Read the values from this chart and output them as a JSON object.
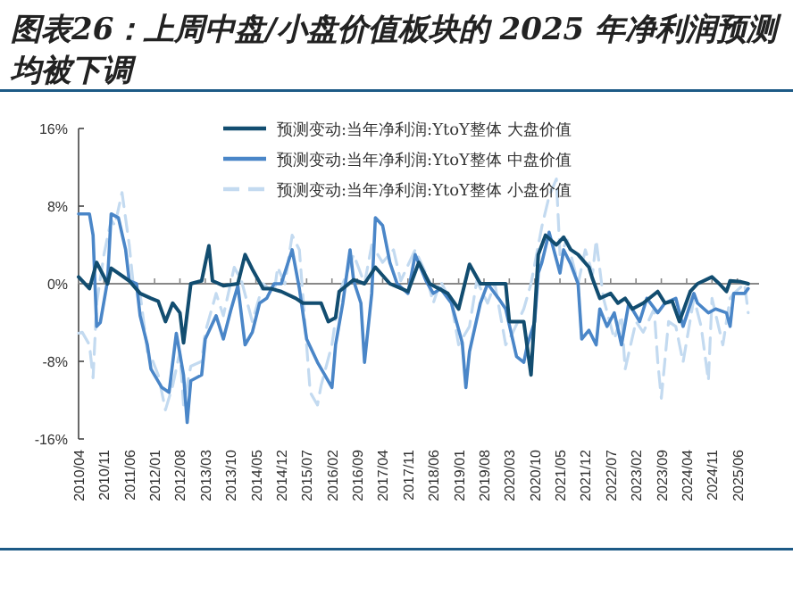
{
  "chart_data": {
    "type": "line",
    "title": "图表26：上周中盘/小盘价值板块的 2025 年净利润预测均被下调",
    "legend": "top",
    "xlim": [
      "2010-04",
      "2025-12"
    ],
    "ylim": [
      -16,
      16
    ],
    "yticks": [
      {
        "value": -16,
        "label": "-16%"
      },
      {
        "value": -8,
        "label": "-8%"
      },
      {
        "value": 0,
        "label": "0%"
      },
      {
        "value": 8,
        "label": "8%"
      },
      {
        "value": 16,
        "label": "16%"
      }
    ],
    "xticks": [
      {
        "value": "2010-04",
        "label": "2010/04"
      },
      {
        "value": "2010-11",
        "label": "2010/11"
      },
      {
        "value": "2011-06",
        "label": "2011/06"
      },
      {
        "value": "2012-01",
        "label": "2012/01"
      },
      {
        "value": "2012-08",
        "label": "2012/08"
      },
      {
        "value": "2013-03",
        "label": "2013/03"
      },
      {
        "value": "2013-10",
        "label": "2013/10"
      },
      {
        "value": "2014-05",
        "label": "2014/05"
      },
      {
        "value": "2014-12",
        "label": "2014/12"
      },
      {
        "value": "2015-07",
        "label": "2015/07"
      },
      {
        "value": "2016-02",
        "label": "2016/02"
      },
      {
        "value": "2016-09",
        "label": "2016/09"
      },
      {
        "value": "2017-04",
        "label": "2017/04"
      },
      {
        "value": "2017-11",
        "label": "2017/11"
      },
      {
        "value": "2018-06",
        "label": "2018/06"
      },
      {
        "value": "2019-01",
        "label": "2019/01"
      },
      {
        "value": "2019-08",
        "label": "2019/08"
      },
      {
        "value": "2020-03",
        "label": "2020/03"
      },
      {
        "value": "2020-10",
        "label": "2020/10"
      },
      {
        "value": "2021-05",
        "label": "2021/05"
      },
      {
        "value": "2021-12",
        "label": "2021/12"
      },
      {
        "value": "2022-07",
        "label": "2022/07"
      },
      {
        "value": "2023-02",
        "label": "2023/02"
      },
      {
        "value": "2023-09",
        "label": "2023/09"
      },
      {
        "value": "2024-04",
        "label": "2024/04"
      },
      {
        "value": "2024-11",
        "label": "2024/11"
      },
      {
        "value": "2025-06",
        "label": "2025/06"
      }
    ],
    "series": [
      {
        "name": "预测变动:当年净利润:YtoY整体 大盘价值",
        "color": "#124d70",
        "line_style": "solid",
        "x": [
          "2010-04",
          "2010-07",
          "2010-09",
          "2010-12",
          "2011-01",
          "2011-06",
          "2011-09",
          "2011-12",
          "2012-02",
          "2012-04",
          "2012-06",
          "2012-08",
          "2012-09",
          "2012-11",
          "2013-02",
          "2013-04",
          "2013-05",
          "2013-08",
          "2013-12",
          "2014-02",
          "2014-04",
          "2014-07",
          "2014-09",
          "2014-12",
          "2015-04",
          "2015-06",
          "2015-11",
          "2016-01",
          "2016-03",
          "2016-04",
          "2016-08",
          "2016-11",
          "2017-02",
          "2017-06",
          "2017-11",
          "2018-02",
          "2018-05",
          "2018-10",
          "2019-01",
          "2019-04",
          "2019-07",
          "2020-02",
          "2020-03",
          "2020-07",
          "2020-09",
          "2020-11",
          "2021-01",
          "2021-04",
          "2021-06",
          "2021-08",
          "2021-10",
          "2022-01",
          "2022-02",
          "2022-04",
          "2022-07",
          "2022-09",
          "2022-11",
          "2023-01",
          "2023-04",
          "2023-08",
          "2023-10",
          "2023-12",
          "2024-02",
          "2024-05",
          "2024-07",
          "2024-11",
          "2025-01",
          "2025-03",
          "2025-04",
          "2025-07",
          "2025-09"
        ],
        "values": [
          0.7,
          -0.5,
          2.2,
          0,
          1.6,
          0.3,
          -1,
          -1.5,
          -1.8,
          -3.9,
          -2,
          -3,
          -6.1,
          0,
          0.3,
          3.9,
          0.3,
          -0.2,
          0,
          3,
          1.5,
          -0.5,
          -0.5,
          -0.8,
          -1.5,
          -2,
          -2,
          -3.9,
          -3.5,
          -0.8,
          0.4,
          0,
          1.7,
          0,
          -0.8,
          2.2,
          0,
          -1,
          -2.6,
          2,
          0,
          0,
          -3.9,
          -3.9,
          -9.4,
          3,
          5,
          4,
          4.8,
          3.5,
          3,
          1.7,
          0.5,
          -1.5,
          -1,
          -2,
          -1.5,
          -2.6,
          -2,
          -0.8,
          -2,
          -1.8,
          -3.9,
          -0.8,
          0,
          0.7,
          0,
          -0.8,
          0.3,
          0.2,
          0
        ]
      },
      {
        "name": "预测变动:当年净利润:YtoY整体 中盘价值",
        "color": "#4a86c8",
        "line_style": "solid",
        "x": [
          "2010-04",
          "2010-07",
          "2010-08",
          "2010-09",
          "2010-10",
          "2010-12",
          "2011-01",
          "2011-03",
          "2011-05",
          "2011-06",
          "2011-08",
          "2011-09",
          "2011-11",
          "2011-12",
          "2012-03",
          "2012-05",
          "2012-07",
          "2012-09",
          "2012-10",
          "2012-11",
          "2013-02",
          "2013-03",
          "2013-06",
          "2013-08",
          "2013-10",
          "2013-12",
          "2014-02",
          "2014-04",
          "2014-06",
          "2014-08",
          "2014-10",
          "2014-12",
          "2015-03",
          "2015-05",
          "2015-07",
          "2015-10",
          "2015-12",
          "2016-02",
          "2016-03",
          "2016-05",
          "2016-07",
          "2016-08",
          "2016-10",
          "2016-11",
          "2017-01",
          "2017-02",
          "2017-04",
          "2017-06",
          "2017-08",
          "2017-11",
          "2018-01",
          "2018-04",
          "2018-06",
          "2018-08",
          "2018-11",
          "2019-02",
          "2019-03",
          "2019-04",
          "2019-07",
          "2019-09",
          "2019-12",
          "2020-02",
          "2020-05",
          "2020-07",
          "2020-08",
          "2020-10",
          "2020-11",
          "2020-12",
          "2021-02",
          "2021-05",
          "2021-06",
          "2021-08",
          "2021-10",
          "2021-11",
          "2022-01",
          "2022-03",
          "2022-04",
          "2022-06",
          "2022-08",
          "2022-10",
          "2022-12",
          "2023-03",
          "2023-05",
          "2023-08",
          "2023-10",
          "2024-01",
          "2024-03",
          "2024-06",
          "2024-07",
          "2024-10",
          "2024-12",
          "2025-03",
          "2025-04",
          "2025-05",
          "2025-08",
          "2025-09"
        ],
        "values": [
          7.2,
          7.2,
          5,
          -4.4,
          -4,
          0.3,
          7.2,
          6.8,
          3.5,
          0.3,
          0,
          -3.3,
          -6.3,
          -8.8,
          -10.7,
          -11.2,
          -5.1,
          -9.4,
          -14.3,
          -10,
          -9.4,
          -5.7,
          -3.3,
          -5.7,
          -2.8,
          -0.2,
          -6.3,
          -5,
          -2,
          -1.5,
          0,
          0,
          3.5,
          -0.5,
          -5.7,
          -8.1,
          -9.4,
          -10.7,
          -6.3,
          -2,
          3.5,
          0.3,
          -2,
          -8.1,
          -1,
          6.8,
          6,
          2.2,
          0,
          -1,
          3,
          0.3,
          -1,
          -0.5,
          -2,
          -6.1,
          -10.7,
          -7,
          -2,
          0,
          -1.5,
          -2.6,
          -7.5,
          -8.1,
          -6.3,
          -3.9,
          1.1,
          2.2,
          5.3,
          1.1,
          3.5,
          2,
          0,
          -5.7,
          -4.8,
          -6.3,
          -2.6,
          -4.4,
          -3,
          -6.3,
          -2,
          -3.9,
          -1.5,
          -3,
          -2,
          -1.5,
          -4.4,
          -1,
          -2,
          -3,
          -2.6,
          -3,
          -4.4,
          -1,
          -1,
          -0.5
        ]
      },
      {
        "name": "预测变动:当年净利润:YtoY整体 小盘价值",
        "color": "#c3daf0",
        "line_style": "dashed",
        "x": [
          "2010-04",
          "2010-05",
          "2010-07",
          "2010-08",
          "2010-09",
          "2010-11",
          "2011-01",
          "2011-02",
          "2011-04",
          "2011-06",
          "2011-07",
          "2011-09",
          "2011-11",
          "2011-12",
          "2012-02",
          "2012-04",
          "2012-06",
          "2012-08",
          "2012-09",
          "2012-11",
          "2013-02",
          "2013-03",
          "2013-06",
          "2013-08",
          "2013-11",
          "2014-01",
          "2014-04",
          "2014-07",
          "2014-10",
          "2014-11",
          "2015-01",
          "2015-03",
          "2015-05",
          "2015-08",
          "2015-10",
          "2015-11",
          "2016-02",
          "2016-04",
          "2016-08",
          "2016-11",
          "2017-01",
          "2017-04",
          "2017-07",
          "2017-09",
          "2018-01",
          "2018-04",
          "2018-06",
          "2018-08",
          "2018-11",
          "2019-01",
          "2019-04",
          "2019-06",
          "2019-09",
          "2019-11",
          "2020-02",
          "2020-04",
          "2020-07",
          "2020-09",
          "2020-12",
          "2021-02",
          "2021-04",
          "2021-05",
          "2021-07",
          "2021-10",
          "2021-12",
          "2022-02",
          "2022-03",
          "2022-05",
          "2022-08",
          "2022-10",
          "2022-11",
          "2023-02",
          "2023-04",
          "2023-07",
          "2023-08",
          "2023-09",
          "2023-11",
          "2024-01",
          "2024-03",
          "2024-06",
          "2024-08",
          "2024-10",
          "2024-11",
          "2025-02",
          "2025-04",
          "2025-05",
          "2025-08",
          "2025-09"
        ],
        "values": [
          -5.1,
          -5,
          -6.3,
          -9.7,
          -2,
          3,
          6.6,
          6,
          9.4,
          4,
          0.3,
          -1,
          -7,
          -7.5,
          -9.4,
          -13,
          -10.5,
          -7,
          -12.5,
          -8.5,
          -8,
          -5,
          -1,
          -3.3,
          1.7,
          0.3,
          -3.9,
          0,
          -1,
          1.7,
          0,
          5,
          3.5,
          -11.2,
          -12.5,
          -10.5,
          -6.3,
          -1,
          3,
          0,
          4,
          2.2,
          3.5,
          0.3,
          3.5,
          1,
          -2,
          0.3,
          -2,
          -6.3,
          -4.4,
          0.3,
          -2,
          0,
          -6.3,
          -5,
          -2.6,
          0,
          5.9,
          9,
          10.8,
          3,
          4.5,
          0,
          3.5,
          1,
          4.5,
          -1.5,
          -5.7,
          -3.3,
          -8.8,
          -3.9,
          -5,
          -2.6,
          -8,
          -11.8,
          -3.9,
          -4.4,
          -8.1,
          -1.5,
          -4.4,
          -10,
          -1.5,
          -6.3,
          -1.5,
          -1,
          0,
          -3
        ]
      }
    ]
  }
}
